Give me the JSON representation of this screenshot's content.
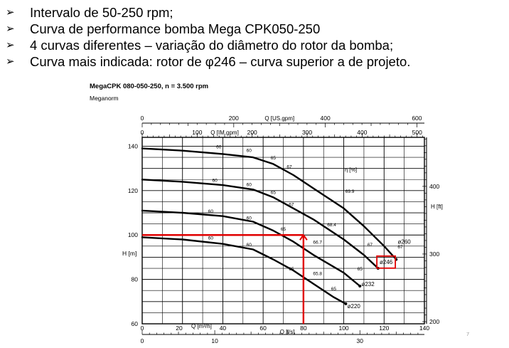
{
  "bullets": [
    {
      "marker": "➢",
      "text": "Intervalo de 50-250 rpm;"
    },
    {
      "marker": "➢",
      "text": "Curva de performance bomba Mega CPK050-250"
    },
    {
      "marker": "➢",
      "text": "4 curvas diferentes – variação do diâmetro do rotor da bomba;"
    },
    {
      "marker": "➢",
      "text": "Curva mais indicada: rotor de φ246 – curva superior a de projeto."
    }
  ],
  "page_number": "7",
  "chart_data": {
    "type": "line",
    "title": "MegaCPK 080-050-250, n = 3.500 rpm",
    "subtitle": "Meganorm",
    "xlabel": "Q [m³/h]",
    "ylabel": "H [m]",
    "xlim": [
      0,
      140
    ],
    "ylim": [
      60,
      145
    ],
    "grid": true,
    "x_ticks": [
      "0",
      "20",
      "40",
      "60",
      "80",
      "100",
      "120",
      "140"
    ],
    "y_ticks": [
      "60",
      "80",
      "100",
      "120",
      "140"
    ],
    "secondary_axes": [
      {
        "position": "top-outer",
        "label": "Q [US.gpm]",
        "ticks": [
          "0",
          "200",
          "400",
          "600"
        ],
        "values": [
          0,
          200,
          400,
          600
        ],
        "factor": 4.4029
      },
      {
        "position": "top-inner",
        "label": "Q [IM.gpm]",
        "ticks": [
          "0",
          "100",
          "200",
          "300",
          "400",
          "500"
        ],
        "values": [
          0,
          100,
          200,
          300,
          400,
          500
        ],
        "factor": 3.6662
      },
      {
        "position": "bottom-outer",
        "label": "Q [l/s]",
        "ticks": [
          "0",
          "10",
          "30"
        ],
        "values": [
          0,
          10,
          30
        ],
        "factor": 0.27778
      },
      {
        "position": "right",
        "label": "H [ft]",
        "ticks": [
          "200",
          "300",
          "400"
        ],
        "values": [
          200,
          300,
          400
        ],
        "factor": 3.2808
      }
    ],
    "series": [
      {
        "name": "ø260",
        "x": [
          0,
          20,
          40,
          55,
          65,
          75,
          85,
          100,
          110,
          120,
          126
        ],
        "y": [
          139,
          138,
          136.5,
          135,
          132,
          127,
          121,
          112,
          104,
          95,
          89
        ]
      },
      {
        "name": "ø246",
        "x": [
          0,
          20,
          40,
          55,
          65,
          75,
          85,
          100,
          110,
          117
        ],
        "y": [
          125,
          124,
          122.5,
          120.5,
          117,
          112,
          107,
          98,
          91,
          85
        ]
      },
      {
        "name": "ø232",
        "x": [
          0,
          20,
          40,
          55,
          65,
          75,
          85,
          100,
          108
        ],
        "y": [
          111,
          110,
          108.5,
          106,
          102,
          97,
          91,
          83,
          77
        ]
      },
      {
        "name": "ø220",
        "x": [
          0,
          20,
          40,
          55,
          65,
          75,
          85,
          95,
          101
        ],
        "y": [
          99,
          98,
          96,
          93.5,
          89,
          84,
          78,
          72,
          69
        ]
      }
    ],
    "efficiency_label": "η [%]",
    "efficiency_labels": [
      {
        "text": "60",
        "x": 38,
        "y": 139
      },
      {
        "text": "60",
        "x": 53,
        "y": 137.5
      },
      {
        "text": "65",
        "x": 65,
        "y": 134
      },
      {
        "text": "67",
        "x": 73,
        "y": 130
      },
      {
        "text": "69.9",
        "x": 103,
        "y": 119
      },
      {
        "text": "60",
        "x": 36,
        "y": 124
      },
      {
        "text": "60",
        "x": 53,
        "y": 122
      },
      {
        "text": "65",
        "x": 65,
        "y": 118.5
      },
      {
        "text": "67",
        "x": 74,
        "y": 113
      },
      {
        "text": "68.4",
        "x": 94,
        "y": 104
      },
      {
        "text": "67",
        "x": 128,
        "y": 94
      },
      {
        "text": "60",
        "x": 34,
        "y": 110
      },
      {
        "text": "60",
        "x": 53,
        "y": 107
      },
      {
        "text": "65",
        "x": 70,
        "y": 102
      },
      {
        "text": "66.7",
        "x": 87,
        "y": 96
      },
      {
        "text": "67",
        "x": 113,
        "y": 95
      },
      {
        "text": "60",
        "x": 34,
        "y": 98
      },
      {
        "text": "60",
        "x": 53,
        "y": 95
      },
      {
        "text": "65",
        "x": 74,
        "y": 84
      },
      {
        "text": "65.8",
        "x": 87,
        "y": 82
      },
      {
        "text": "65",
        "x": 108,
        "y": 84
      },
      {
        "text": "65",
        "x": 95,
        "y": 75
      }
    ],
    "diameter_labels": [
      {
        "text": "ø260",
        "x": 130,
        "y": 96
      },
      {
        "text": "ø246",
        "x": 121,
        "y": 87
      },
      {
        "text": "ø232",
        "x": 112,
        "y": 77
      },
      {
        "text": "ø220",
        "x": 105,
        "y": 67
      }
    ],
    "annotations": {
      "guide_color": "#e00000",
      "operating_point": {
        "x": 80,
        "y": 100
      },
      "highlight_label": "ø246"
    }
  }
}
